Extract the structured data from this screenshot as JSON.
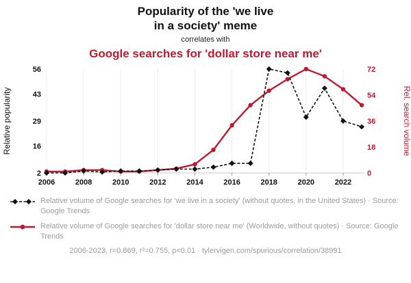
{
  "header": {
    "title_line1": "Popularity of the 'we live",
    "title_line2": "in a society' meme",
    "connector": "correlates with",
    "red_title": "Google searches for 'dollar store near me'"
  },
  "chart_data": {
    "type": "line",
    "title": "Popularity of the 'we live in a society' meme correlates with Google searches for 'dollar store near me'",
    "x": [
      2006,
      2007,
      2008,
      2009,
      2010,
      2011,
      2012,
      2013,
      2014,
      2015,
      2016,
      2017,
      2018,
      2019,
      2020,
      2021,
      2022,
      2023
    ],
    "x_range": [
      2006,
      2023
    ],
    "x_ticks": [
      2006,
      2008,
      2010,
      2012,
      2014,
      2016,
      2018,
      2020,
      2022
    ],
    "left_axis": {
      "label": "Relative popularity",
      "ticks": [
        2,
        16,
        29,
        43,
        56
      ],
      "range": [
        2,
        56
      ]
    },
    "right_axis": {
      "label": "Rel. search volume",
      "ticks": [
        0,
        18,
        36,
        54,
        72
      ],
      "range": [
        0,
        72
      ]
    },
    "series": [
      {
        "name": "we live in a society",
        "axis": "left",
        "style": "dashed-diamond",
        "values": [
          2,
          2,
          3,
          2.5,
          3,
          3,
          3.5,
          4,
          4,
          5,
          7,
          7,
          56,
          54,
          31,
          46,
          29,
          26
        ]
      },
      {
        "name": "dollar store near me",
        "axis": "right",
        "style": "solid-circle",
        "values": [
          1,
          1,
          2,
          2,
          1,
          1,
          2,
          3,
          6,
          16,
          33,
          47,
          57,
          65,
          72,
          67,
          58,
          47
        ]
      }
    ],
    "colors": {
      "black": "#111111",
      "red": "#c0182f"
    },
    "grid": "vertical",
    "legend_position": "bottom"
  },
  "legend": [
    {
      "label": "Relative volume of Google searches for 'we live in a society' (without quotes, in the United States) · Source: Google Trends"
    },
    {
      "label": "Relative volume of Google searches for 'dollar store near me' (Worldwide, without quotes) · Source: Google Trends"
    }
  ],
  "footer": "2006-2023, r=0.869, r²=0.755, p<0.01 · tylervigen.com/spurious/correlation/38991"
}
